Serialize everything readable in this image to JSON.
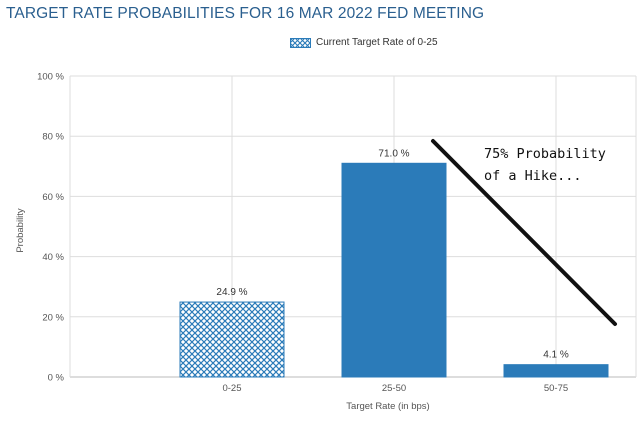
{
  "chart_data": {
    "type": "bar",
    "title": "TARGET RATE PROBABILITIES FOR 16 MAR 2022 FED MEETING",
    "xlabel": "Target Rate (in bps)",
    "ylabel": "Probability",
    "ylim": [
      0,
      100
    ],
    "yticks": [
      0,
      20,
      40,
      60,
      80,
      100
    ],
    "ytick_labels": [
      "0 %",
      "20 %",
      "40 %",
      "60 %",
      "80 %",
      "100 %"
    ],
    "grid": true,
    "legend_position": "top-center",
    "legend": [
      {
        "label": "Current Target Rate of 0-25",
        "pattern": "crosshatch"
      }
    ],
    "categories": [
      "0-25",
      "25-50",
      "50-75"
    ],
    "values": [
      24.9,
      71.0,
      4.1
    ],
    "value_labels": [
      "24.9 %",
      "71.0 %",
      "4.1 %"
    ],
    "highlighted_category": "0-25",
    "annotations": [
      {
        "text": [
          "75% Probability",
          "of a Hike..."
        ],
        "style": "handwritten",
        "arrow": "diagonal line descending from the 25-50 bar top toward the 50-75 bar"
      }
    ],
    "colors": {
      "bar": "#2b7bb9",
      "title": "#2a5f8f",
      "grid": "#dddddd"
    }
  }
}
